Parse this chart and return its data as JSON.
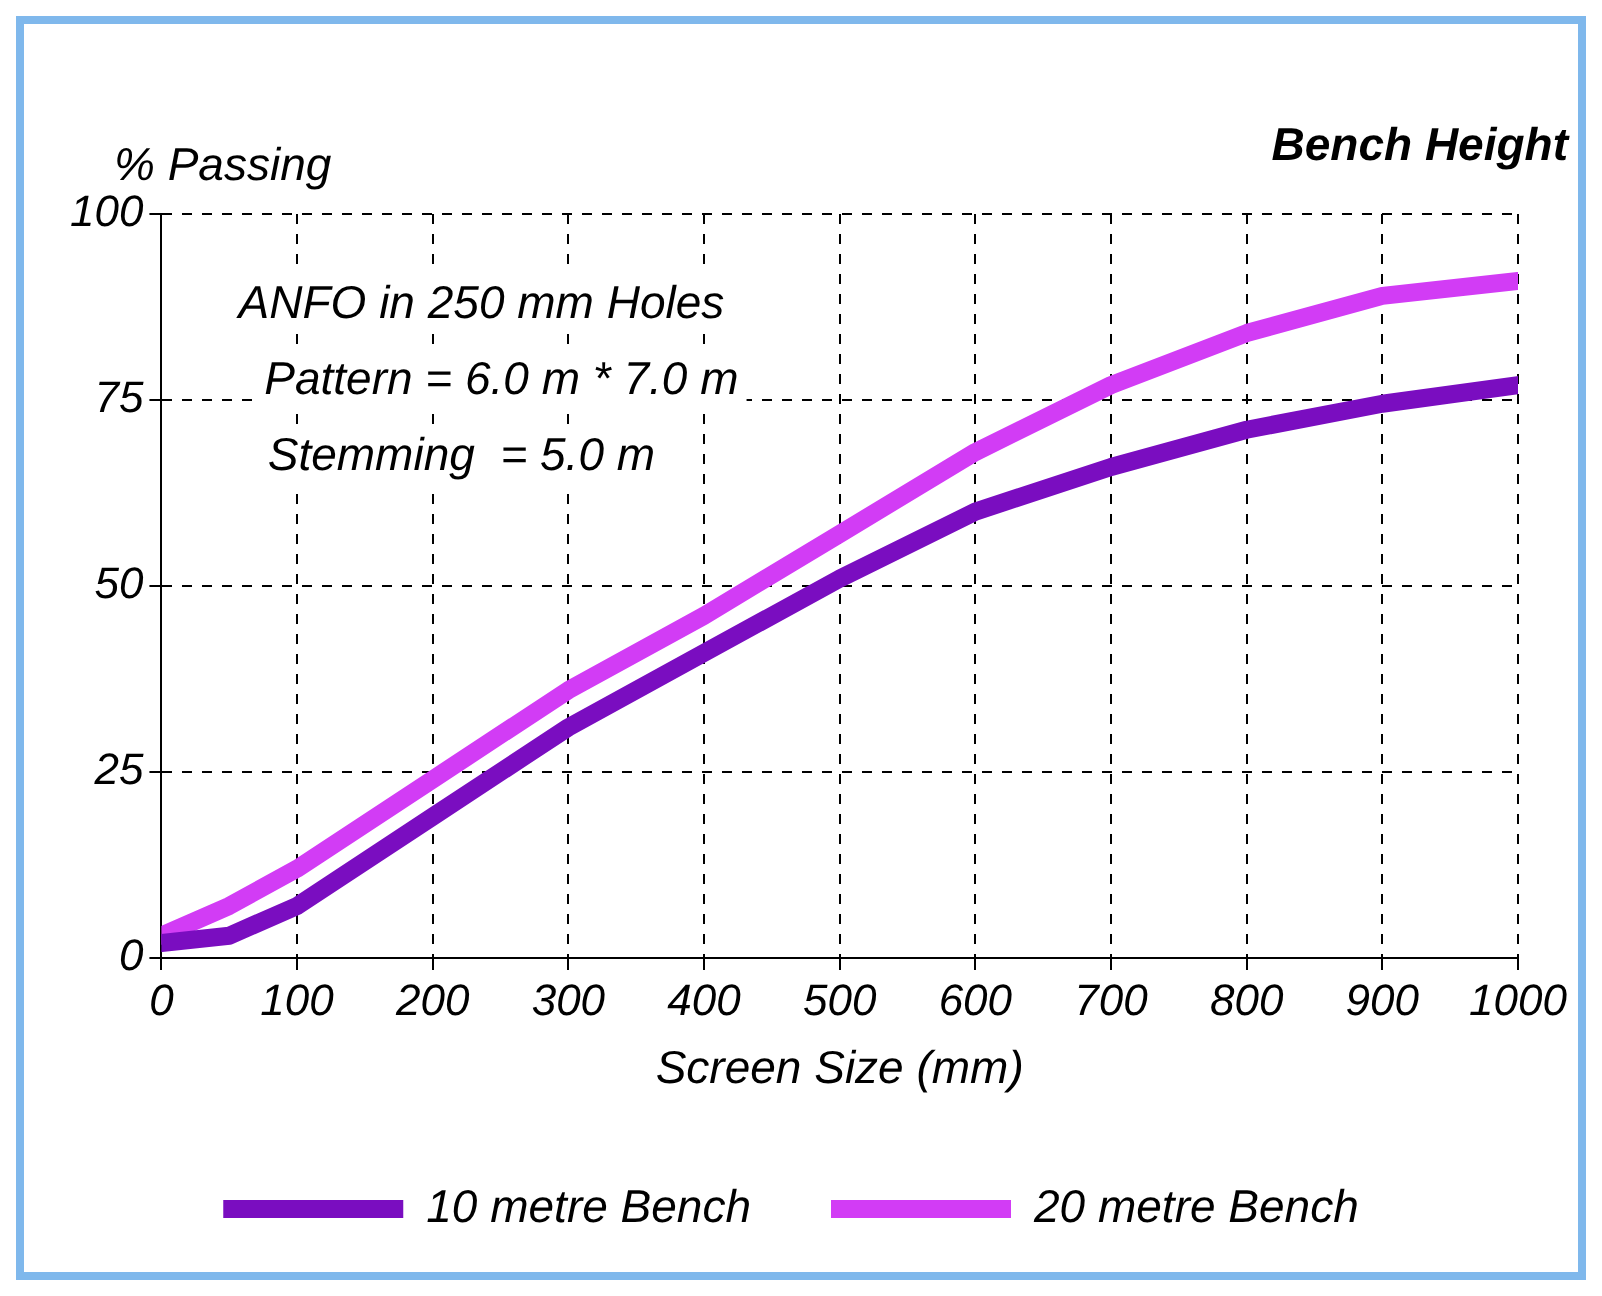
{
  "chart_data": {
    "type": "line",
    "title": "Bench Height",
    "xlabel": "Screen Size (mm)",
    "ylabel": "% Passing",
    "annotations": [
      "ANFO in 250 mm Holes",
      "Pattern = 6.0 m * 7.0 m",
      "Stemming  = 5.0 m"
    ],
    "series": [
      {
        "name": "10 metre Bench",
        "color": "#7a0dc0",
        "x": [
          0,
          50,
          100,
          200,
          300,
          400,
          500,
          600,
          700,
          800,
          900,
          1000
        ],
        "values": [
          2,
          3,
          7,
          19,
          31,
          41,
          51,
          60,
          66,
          71,
          74.5,
          77
        ]
      },
      {
        "name": "20 metre Bench",
        "color": "#d23cf5",
        "x": [
          0,
          50,
          100,
          200,
          300,
          400,
          500,
          600,
          700,
          800,
          900,
          1000
        ],
        "values": [
          3,
          7,
          12,
          24,
          36,
          46,
          57,
          68,
          77,
          84,
          89,
          91
        ]
      }
    ],
    "xlim": [
      0,
      1000
    ],
    "xticks": [
      0,
      100,
      200,
      300,
      400,
      500,
      600,
      700,
      800,
      900,
      1000
    ],
    "ylim": [
      0,
      100
    ],
    "yticks": [
      0,
      25,
      50,
      75,
      100
    ],
    "grid": true,
    "legend": "bottom",
    "marker": "none",
    "line_style": "solid"
  }
}
